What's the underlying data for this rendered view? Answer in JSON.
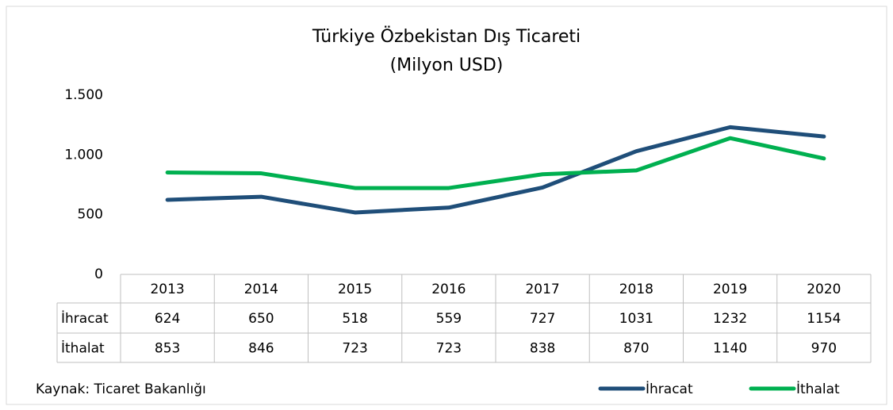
{
  "chart_data": {
    "type": "line",
    "title": "Türkiye Özbekistan Dış Ticareti",
    "subtitle": "(Milyon USD)",
    "categories": [
      "2013",
      "2014",
      "2015",
      "2016",
      "2017",
      "2018",
      "2019",
      "2020"
    ],
    "series": [
      {
        "name": "İhracat",
        "color": "#1f4e79",
        "values": [
          624,
          650,
          518,
          559,
          727,
          1031,
          1232,
          1154
        ]
      },
      {
        "name": "İthalat",
        "color": "#00b050",
        "values": [
          853,
          846,
          723,
          723,
          838,
          870,
          1140,
          970
        ]
      }
    ],
    "ylim": [
      0,
      1500
    ],
    "yticks": [
      0,
      500,
      {
        "value": 1000,
        "label": "1.000"
      },
      {
        "value": 1500,
        "label": "1.500"
      }
    ],
    "grid": false,
    "legend": "bottom-right",
    "source": "Kaynak: Ticaret Bakanlığı"
  }
}
